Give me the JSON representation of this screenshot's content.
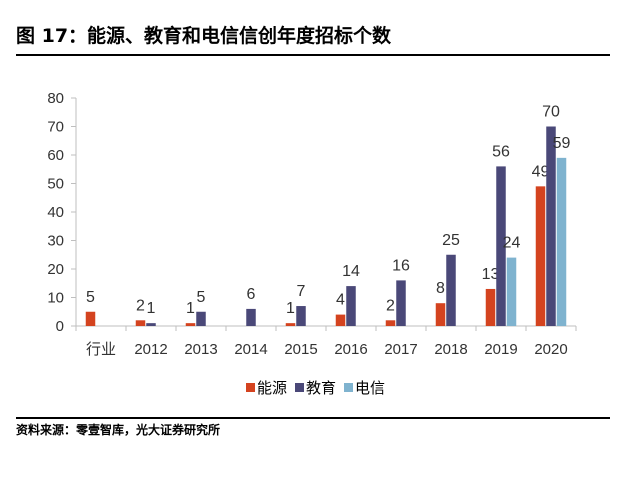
{
  "title": "图 17：能源、教育和电信信创年度招标个数",
  "source": "资料来源：零壹智库，光大证券研究所",
  "colors": {
    "能源": "#d4431f",
    "教育": "#4a4878",
    "电信": "#7fb3cf",
    "axis": "#bfbfbf"
  },
  "chart_data": {
    "type": "bar",
    "categories": [
      "行业",
      "2012",
      "2013",
      "2014",
      "2015",
      "2016",
      "2017",
      "2018",
      "2019",
      "2020"
    ],
    "series": [
      {
        "name": "能源",
        "values": [
          5,
          2,
          1,
          null,
          1,
          4,
          2,
          8,
          13,
          49
        ]
      },
      {
        "name": "教育",
        "values": [
          null,
          1,
          5,
          6,
          7,
          14,
          16,
          25,
          56,
          70
        ]
      },
      {
        "name": "电信",
        "values": [
          null,
          null,
          null,
          null,
          null,
          null,
          null,
          null,
          24,
          59
        ]
      }
    ],
    "ylim": [
      0,
      80
    ],
    "yticks": [
      0,
      10,
      20,
      30,
      40,
      50,
      60,
      70,
      80
    ],
    "legend": [
      "能源",
      "教育",
      "电信"
    ],
    "legend_position": "bottom"
  }
}
